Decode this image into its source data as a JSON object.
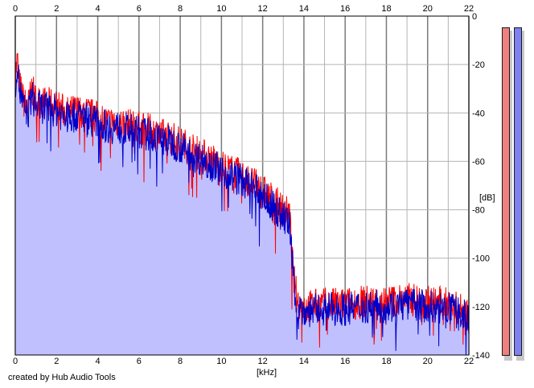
{
  "footer": {
    "credit": "created by Hub Audio Tools"
  },
  "colors": {
    "fill": "#c0c0ff",
    "left_channel": "#ff0000",
    "right_channel": "#0000c8",
    "grid_minor": "#b4b4b4",
    "grid_major": "#7a7a7a",
    "meter_left": "#f08080",
    "meter_right": "#8080f0"
  },
  "meters": {
    "left_level_db": -5,
    "right_level_db": -5
  },
  "chart_data": {
    "type": "area",
    "title": "",
    "xlabel": "[kHz]",
    "ylabel": "[dB]",
    "xlim": [
      0,
      22
    ],
    "ylim": [
      -140,
      0
    ],
    "x_ticks": [
      0,
      2,
      4,
      6,
      8,
      10,
      12,
      14,
      16,
      18,
      20,
      22
    ],
    "y_ticks": [
      0,
      -20,
      -40,
      -60,
      -80,
      -100,
      -120,
      -140
    ],
    "grid": true,
    "series": [
      {
        "x": [
          0,
          0.1,
          0.2,
          0.4,
          0.6,
          0.8,
          1.0,
          1.5,
          2.0,
          2.5,
          3.0,
          3.5,
          4.0,
          4.5,
          5.0,
          5.5,
          6.0,
          6.5,
          7.0,
          7.5,
          8.0,
          8.5,
          9.0,
          9.5,
          10.0,
          10.5,
          11.0,
          11.5,
          12.0,
          12.5,
          13.0,
          13.3,
          13.5,
          13.7,
          14.0,
          15.0,
          16.0,
          17.0,
          18.0,
          19.0,
          20.0,
          21.0,
          22.0
        ],
        "values": [
          -25,
          -18,
          -28,
          -35,
          -38,
          -30,
          -35,
          -36,
          -37,
          -40,
          -39,
          -40,
          -42,
          -44,
          -44,
          -45,
          -46,
          -47,
          -49,
          -50,
          -52,
          -55,
          -57,
          -59,
          -62,
          -64,
          -66,
          -69,
          -72,
          -76,
          -80,
          -82,
          -108,
          -118,
          -120,
          -119,
          -119,
          -118,
          -118,
          -117,
          -118,
          -119,
          -123
        ]
      },
      {
        "x": [
          0,
          0.1,
          0.2,
          0.4,
          0.6,
          0.8,
          1.0,
          1.5,
          2.0,
          2.5,
          3.0,
          3.5,
          4.0,
          4.5,
          5.0,
          5.5,
          6.0,
          6.5,
          7.0,
          7.5,
          8.0,
          8.5,
          9.0,
          9.5,
          10.0,
          10.5,
          11.0,
          11.5,
          12.0,
          12.5,
          13.0,
          13.3,
          13.5,
          13.7,
          14.0,
          15.0,
          16.0,
          17.0,
          18.0,
          19.0,
          20.0,
          21.0,
          22.0
        ],
        "values": [
          -28,
          -20,
          -30,
          -38,
          -41,
          -33,
          -37,
          -38,
          -39,
          -42,
          -41,
          -42,
          -44,
          -46,
          -46,
          -47,
          -48,
          -49,
          -51,
          -52,
          -54,
          -57,
          -59,
          -61,
          -64,
          -66,
          -68,
          -71,
          -74,
          -79,
          -83,
          -86,
          -110,
          -120,
          -122,
          -121,
          -121,
          -120,
          -120,
          -119,
          -120,
          -121,
          -125
        ]
      }
    ]
  }
}
